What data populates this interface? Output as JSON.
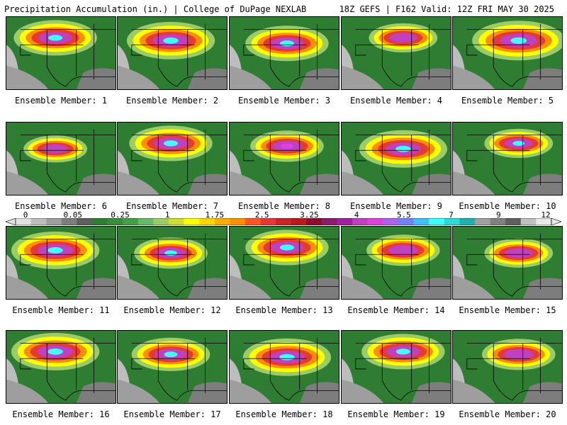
{
  "header": {
    "left_title": "Precipitation Accumulation (in.) | College of DuPage NEXLAB",
    "right_title": "18Z GEFS | F162 Valid: 12Z FRI MAY 30 2025"
  },
  "colorbar": {
    "tick_labels": [
      "0",
      "0.05",
      "0.25",
      "1",
      "1.75",
      "2.5",
      "3.25",
      "4",
      "5.5",
      "7",
      "9",
      "12"
    ],
    "colors": [
      "#e0e0e0",
      "#bdbdbd",
      "#9e9e9e",
      "#7d7d7d",
      "#5e5e5e",
      "#2e7d32",
      "#388e3c",
      "#43a047",
      "#66bb6a",
      "#9ccc65",
      "#cddc39",
      "#ffff00",
      "#ffd600",
      "#ffab00",
      "#ff8f00",
      "#ff5722",
      "#e53935",
      "#c62828",
      "#b71c1c",
      "#8e0e2e",
      "#8e1a6b",
      "#a020a0",
      "#c040c0",
      "#e040e0",
      "#b060f0",
      "#7080ff",
      "#40c0ff",
      "#40ffff",
      "#30d8d8",
      "#20b0b0",
      "#a0a0a0",
      "#808080",
      "#606060",
      "#c0c0c0",
      "#e8e8e8"
    ]
  },
  "members": [
    {
      "label": "Ensemble Member: 1",
      "intensity": 0.85,
      "max_color": "#40ffff"
    },
    {
      "label": "Ensemble Member: 2",
      "intensity": 0.9,
      "max_color": "#40ffff"
    },
    {
      "label": "Ensemble Member: 3",
      "intensity": 0.85,
      "max_color": "#40ffff"
    },
    {
      "label": "Ensemble Member: 4",
      "intensity": 0.7,
      "max_color": "#c040c0"
    },
    {
      "label": "Ensemble Member: 5",
      "intensity": 0.95,
      "max_color": "#40ffff"
    },
    {
      "label": "Ensemble Member: 6",
      "intensity": 0.65,
      "max_color": "#c040c0"
    },
    {
      "label": "Ensemble Member: 7",
      "intensity": 0.85,
      "max_color": "#40ffff"
    },
    {
      "label": "Ensemble Member: 8",
      "intensity": 0.75,
      "max_color": "#e040e0"
    },
    {
      "label": "Ensemble Member: 9",
      "intensity": 0.9,
      "max_color": "#40ffff"
    },
    {
      "label": "Ensemble Member: 10",
      "intensity": 0.7,
      "max_color": "#40ffff"
    },
    {
      "label": "Ensemble Member: 11",
      "intensity": 0.9,
      "max_color": "#40ffff"
    },
    {
      "label": "Ensemble Member: 12",
      "intensity": 0.75,
      "max_color": "#40ffff"
    },
    {
      "label": "Ensemble Member: 13",
      "intensity": 0.85,
      "max_color": "#40ffff"
    },
    {
      "label": "Ensemble Member: 14",
      "intensity": 0.75,
      "max_color": "#c040c0"
    },
    {
      "label": "Ensemble Member: 15",
      "intensity": 0.7,
      "max_color": "#c040c0"
    },
    {
      "label": "Ensemble Member: 16",
      "intensity": 0.9,
      "max_color": "#40ffff"
    },
    {
      "label": "Ensemble Member: 17",
      "intensity": 0.8,
      "max_color": "#40ffff"
    },
    {
      "label": "Ensemble Member: 18",
      "intensity": 0.9,
      "max_color": "#40ffff"
    },
    {
      "label": "Ensemble Member: 19",
      "intensity": 0.85,
      "max_color": "#40ffff"
    },
    {
      "label": "Ensemble Member: 20",
      "intensity": 0.75,
      "max_color": "#c040c0"
    }
  ]
}
